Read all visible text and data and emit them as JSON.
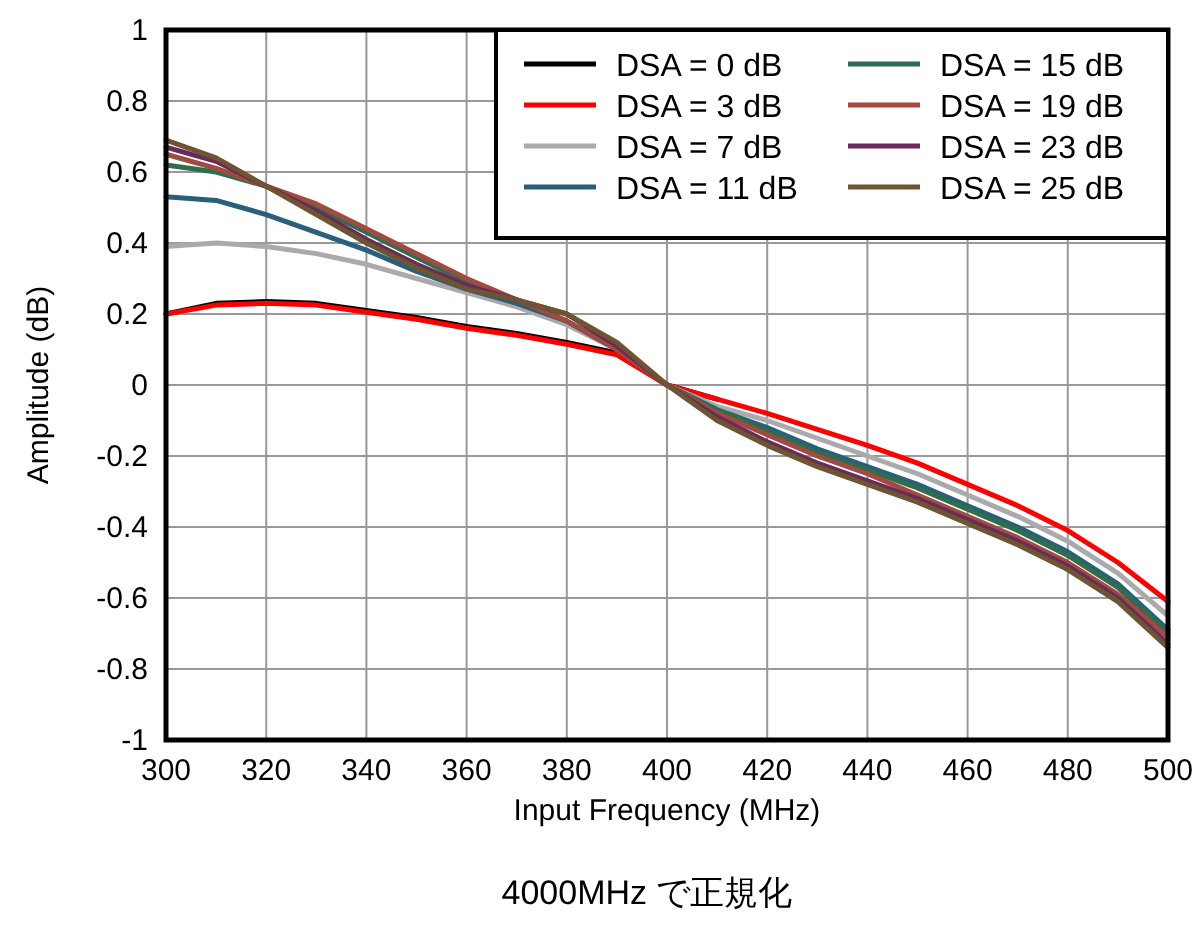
{
  "chart_data": {
    "type": "line",
    "xlabel": "Input Frequency (MHz)",
    "ylabel": "Amplitude (dB)",
    "annotations": [
      "4000MHz で正規化"
    ],
    "x": [
      300,
      310,
      320,
      330,
      340,
      350,
      360,
      370,
      380,
      390,
      400,
      410,
      420,
      430,
      440,
      450,
      460,
      470,
      480,
      490,
      500
    ],
    "xlim": [
      300,
      500
    ],
    "xticks": [
      300,
      320,
      340,
      360,
      380,
      400,
      420,
      440,
      460,
      480,
      500
    ],
    "ylim": [
      -1,
      1
    ],
    "yticks": [
      -1,
      -0.8,
      -0.6,
      -0.4,
      -0.2,
      0,
      0.2,
      0.4,
      0.6,
      0.8,
      1
    ],
    "grid": true,
    "legend": "top right",
    "marker": "none",
    "line_style": "solid",
    "series": [
      {
        "name": "DSA = 0 dB",
        "color": "#000000",
        "values": [
          0.2,
          0.23,
          0.235,
          0.23,
          0.21,
          0.19,
          0.165,
          0.145,
          0.12,
          0.09,
          0,
          -0.04,
          null,
          null,
          null,
          null,
          null,
          null,
          null,
          null,
          null
        ]
      },
      {
        "name": "DSA = 3 dB",
        "color": "#ff0000",
        "values": [
          0.2,
          0.225,
          0.23,
          0.225,
          0.205,
          0.185,
          0.16,
          0.14,
          0.115,
          0.085,
          0,
          -0.04,
          -0.08,
          -0.125,
          -0.17,
          -0.22,
          -0.28,
          -0.34,
          -0.41,
          -0.5,
          -0.61
        ]
      },
      {
        "name": "DSA = 7 dB",
        "color": "#aaaaaa",
        "values": [
          0.39,
          0.4,
          0.39,
          0.37,
          0.34,
          0.3,
          0.26,
          0.22,
          0.17,
          0.1,
          0,
          -0.06,
          -0.1,
          -0.15,
          -0.2,
          -0.25,
          -0.31,
          -0.37,
          -0.44,
          -0.53,
          -0.65
        ]
      },
      {
        "name": "DSA = 11 dB",
        "color": "#2a5f7a",
        "values": [
          0.53,
          0.52,
          0.48,
          0.43,
          0.38,
          0.32,
          0.27,
          0.23,
          0.18,
          0.1,
          0,
          -0.07,
          -0.12,
          -0.18,
          -0.23,
          -0.28,
          -0.34,
          -0.4,
          -0.47,
          -0.56,
          -0.69
        ]
      },
      {
        "name": "DSA = 15 dB",
        "color": "#2e6e4e",
        "values": [
          0.62,
          0.6,
          0.56,
          0.5,
          0.43,
          0.36,
          0.29,
          0.24,
          0.18,
          0.1,
          0,
          -0.07,
          -0.13,
          -0.19,
          -0.24,
          -0.29,
          -0.35,
          -0.41,
          -0.48,
          -0.57,
          -0.7
        ]
      },
      {
        "name": "DSA = 19 dB",
        "color": "#a04a40",
        "values": [
          0.65,
          0.61,
          0.56,
          0.51,
          0.44,
          0.37,
          0.3,
          0.24,
          0.18,
          0.1,
          0,
          -0.08,
          -0.14,
          -0.2,
          -0.25,
          -0.31,
          -0.37,
          -0.43,
          -0.5,
          -0.59,
          -0.71
        ]
      },
      {
        "name": "DSA = 23 dB",
        "color": "#6a2a5a",
        "values": [
          0.67,
          0.63,
          0.56,
          0.49,
          0.41,
          0.34,
          0.28,
          0.24,
          0.2,
          0.11,
          0,
          -0.09,
          -0.16,
          -0.22,
          -0.27,
          -0.32,
          -0.38,
          -0.44,
          -0.51,
          -0.6,
          -0.73
        ]
      },
      {
        "name": "DSA = 25 dB",
        "color": "#6e5430",
        "values": [
          0.69,
          0.64,
          0.56,
          0.48,
          0.4,
          0.33,
          0.27,
          0.24,
          0.2,
          0.12,
          0,
          -0.1,
          -0.17,
          -0.23,
          -0.28,
          -0.33,
          -0.39,
          -0.45,
          -0.52,
          -0.61,
          -0.74
        ]
      }
    ]
  }
}
